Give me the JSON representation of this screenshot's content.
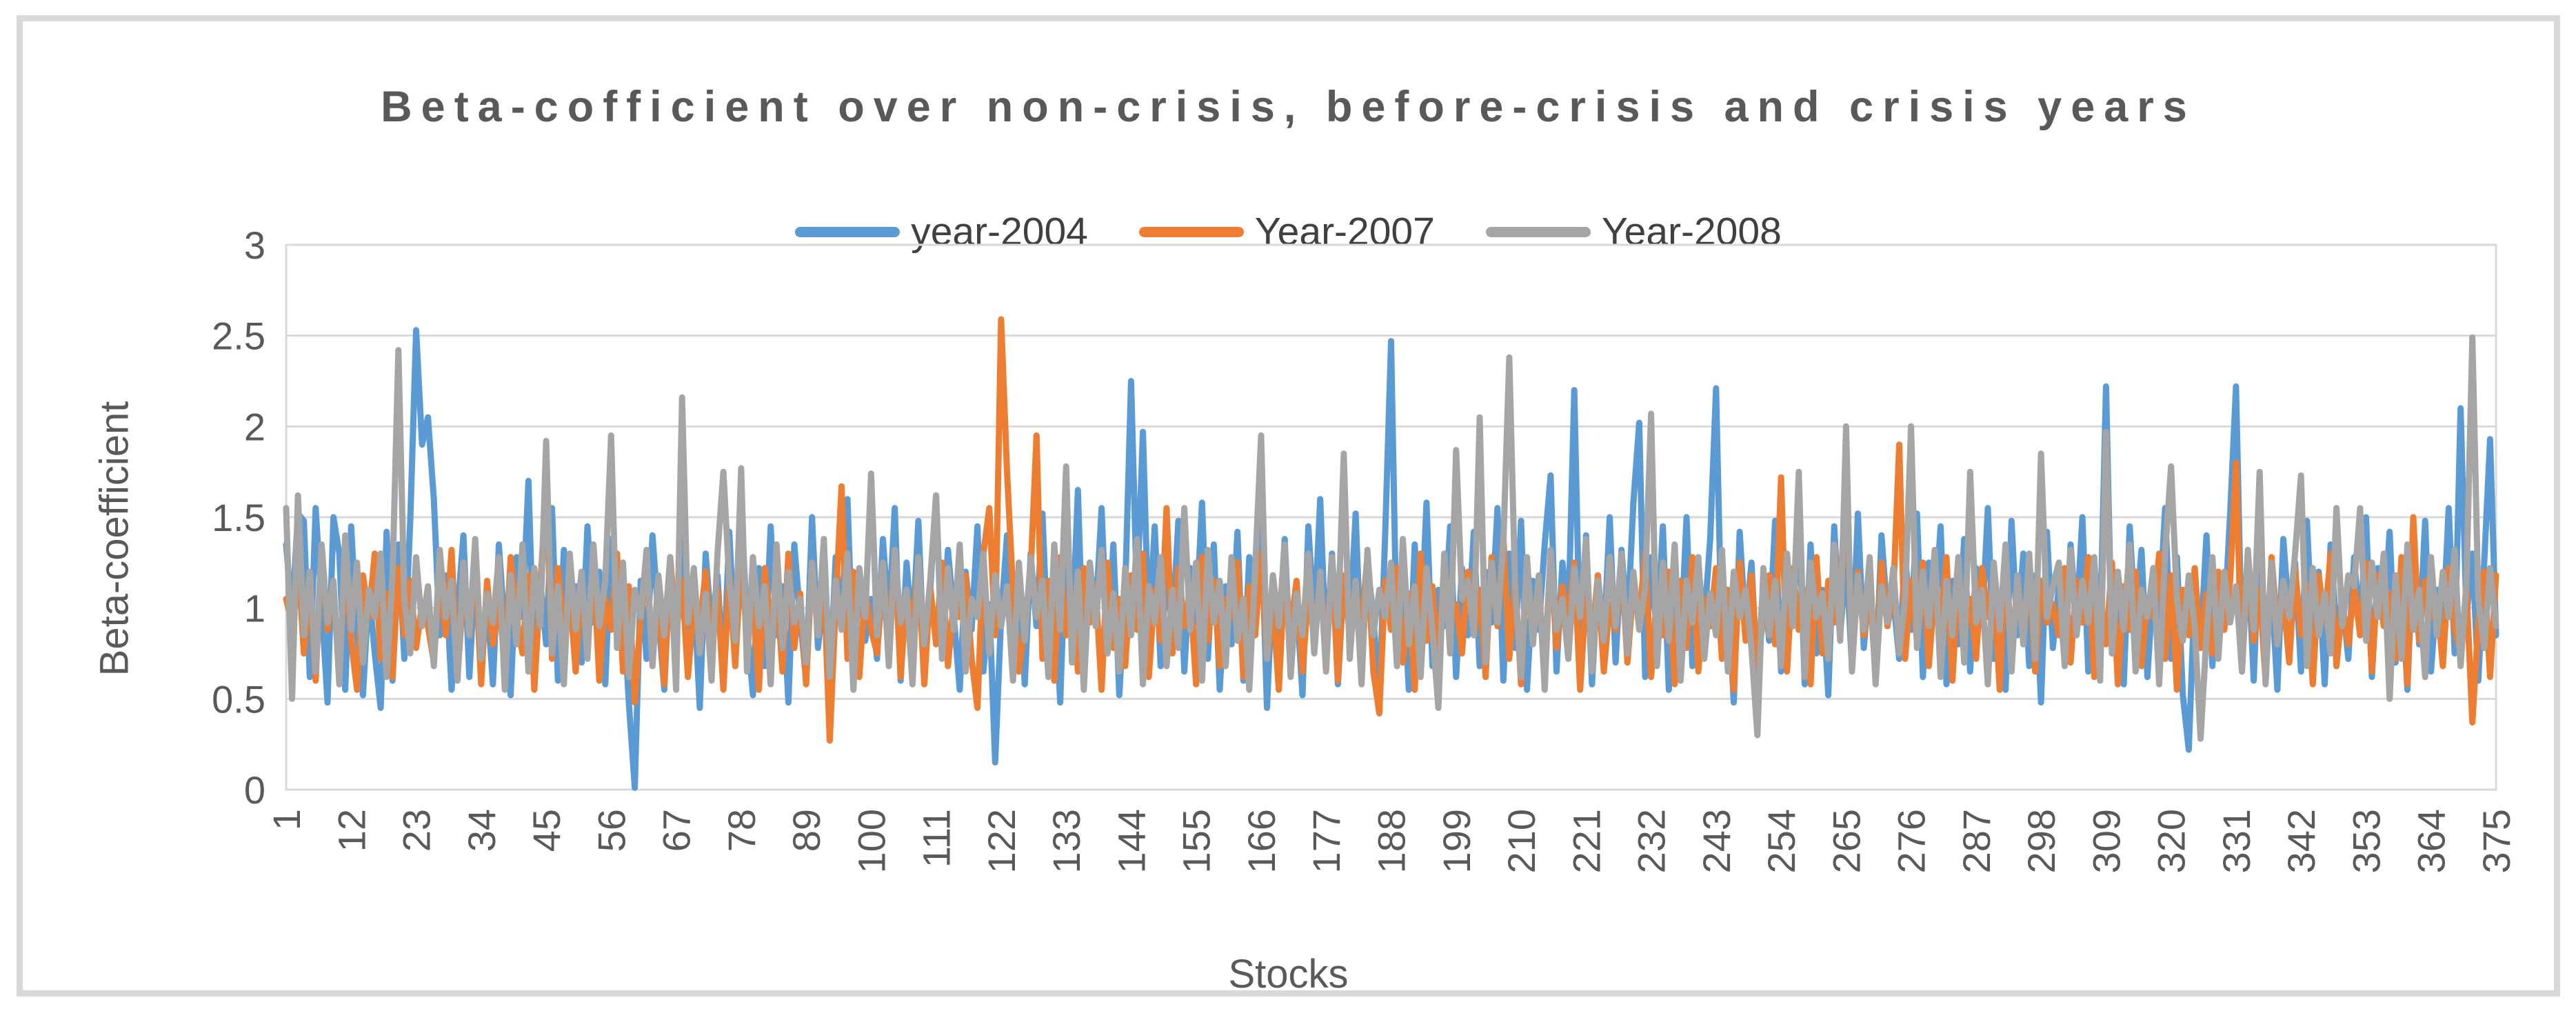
{
  "chart_data": {
    "type": "line",
    "title": "Beta-cofficient over non-crisis, before-crisis and crisis years",
    "xlabel": "Stocks",
    "ylabel": "Beta-coefficient",
    "ylim": [
      0,
      3
    ],
    "x_range": [
      1,
      375
    ],
    "grid": true,
    "legend_position": "top",
    "grid_color": "#d9d9d9",
    "tick_color": "#595959",
    "y_ticks": [
      0,
      0.5,
      1,
      1.5,
      2,
      2.5,
      3
    ],
    "y_tick_labels": [
      "0",
      "0.5",
      "1",
      "1.5",
      "2",
      "2.5",
      "3"
    ],
    "x_tick_labels": [
      "1",
      "12",
      "23",
      "34",
      "45",
      "56",
      "67",
      "78",
      "89",
      "100",
      "111",
      "122",
      "133",
      "144",
      "155",
      "166",
      "177",
      "188",
      "199",
      "210",
      "221",
      "232",
      "243",
      "254",
      "265",
      "276",
      "287",
      "298",
      "309",
      "320",
      "331",
      "342",
      "353",
      "364",
      "375"
    ],
    "series": [
      {
        "name": "year-2004",
        "color": "#5B9BD5",
        "values": [
          1.35,
          0.95,
          1.52,
          1.48,
          0.62,
          1.55,
          1.02,
          0.48,
          1.5,
          1.3,
          0.55,
          1.45,
          0.85,
          0.52,
          1.1,
          0.75,
          0.45,
          1.42,
          0.6,
          1.35,
          0.72,
          1.48,
          2.53,
          1.9,
          2.05,
          1.6,
          0.85,
          1.18,
          0.55,
          0.98,
          1.4,
          0.62,
          1.22,
          0.78,
          1.05,
          0.58,
          1.35,
          0.88,
          0.52,
          1.28,
          0.95,
          1.7,
          0.65,
          1.15,
          0.8,
          1.55,
          0.6,
          1.32,
          0.9,
          1.12,
          0.7,
          1.45,
          0.92,
          1.2,
          0.58,
          1.38,
          0.85,
          1.05,
          0.48,
          0.01,
          1.15,
          0.72,
          1.4,
          0.95,
          0.55,
          1.25,
          0.8,
          1.52,
          0.68,
          1.1,
          0.45,
          1.3,
          0.88,
          1.18,
          0.62,
          1.42,
          0.75,
          1.58,
          0.9,
          0.52,
          1.22,
          0.68,
          1.45,
          0.85,
          1.12,
          0.48,
          1.35,
          0.95,
          0.6,
          1.5,
          0.78,
          1.08,
          0.55,
          1.28,
          0.9,
          1.6,
          0.65,
          1.18,
          0.82,
          1.05,
          0.72,
          1.38,
          0.92,
          1.55,
          0.6,
          1.25,
          0.85,
          1.48,
          0.68,
          1.1,
          1.62,
          0.78,
          1.32,
          0.95,
          0.55,
          1.2,
          0.88,
          1.45,
          0.65,
          1.02,
          0.15,
          0.95,
          1.4,
          0.75,
          1.15,
          0.58,
          1.3,
          0.9,
          1.52,
          0.7,
          1.15,
          0.48,
          1.42,
          0.82,
          1.65,
          0.6,
          1.25,
          0.95,
          1.55,
          0.75,
          1.35,
          0.52,
          1.1,
          2.25,
          1.05,
          1.97,
          0.85,
          1.45,
          0.68,
          1.2,
          0.88,
          1.48,
          0.65,
          1.22,
          0.92,
          1.58,
          0.72,
          1.35,
          0.55,
          1.12,
          0.8,
          1.42,
          0.6,
          1.28,
          0.95,
          1.5,
          0.45,
          1.18,
          0.85,
          1.38,
          0.68,
          1.05,
          0.52,
          1.45,
          0.9,
          1.6,
          0.75,
          1.3,
          0.58,
          1.15,
          0.88,
          1.52,
          0.65,
          1.25,
          0.95,
          0.48,
          1.4,
          2.47,
          0.72,
          1.18,
          0.55,
          1.35,
          0.82,
          1.58,
          0.68,
          1.1,
          0.9,
          1.45,
          0.62,
          1.22,
          0.85,
          1.42,
          0.68,
          1.2,
          0.92,
          1.55,
          0.6,
          1.3,
          0.78,
          1.48,
          0.55,
          1.15,
          0.88,
          1.35,
          1.73,
          0.65,
          1.25,
          0.95,
          2.2,
          0.72,
          1.4,
          0.58,
          1.18,
          0.82,
          1.5,
          0.7,
          1.32,
          0.9,
          1.58,
          2.02,
          0.62,
          1.28,
          0.85,
          1.45,
          0.55,
          1.12,
          0.78,
          1.5,
          0.68,
          1.22,
          0.92,
          1.38,
          2.21,
          0.75,
          1.08,
          0.48,
          1.42,
          0.88,
          1.25,
          0.6,
          1.15,
          0.82,
          1.48,
          0.65,
          1.2,
          0.9,
          1.55,
          0.58,
          1.35,
          0.75,
          1.1,
          0.52,
          1.45,
          0.85,
          1.28,
          0.68,
          1.52,
          0.78,
          1.18,
          0.6,
          1.4,
          0.95,
          1.05,
          0.72,
          1.3,
          0.88,
          1.52,
          0.62,
          1.25,
          0.95,
          1.45,
          0.58,
          1.15,
          0.8,
          1.38,
          0.65,
          1.22,
          0.9,
          1.55,
          0.72,
          1.08,
          0.55,
          1.48,
          0.85,
          1.3,
          0.68,
          1.18,
          0.48,
          1.42,
          0.78,
          1.12,
          0.7,
          1.35,
          0.92,
          1.5,
          0.65,
          1.25,
          0.85,
          2.22,
          0.75,
          1.2,
          0.58,
          1.45,
          0.88,
          1.32,
          0.62,
          1.15,
          0.95,
          1.55,
          0.72,
          1.28,
          0.52,
          0.22,
          1.1,
          0.8,
          1.4,
          0.68,
          1.18,
          0.9,
          1.52,
          2.22,
          0.75,
          1.3,
          0.6,
          1.45,
          0.82,
          1.12,
          0.55,
          1.38,
          0.95,
          1.25,
          0.65,
          1.48,
          0.78,
          1.2,
          0.58,
          1.35,
          0.88,
          1.05,
          0.72,
          1.28,
          0.85,
          1.5,
          0.62,
          1.22,
          0.92,
          1.42,
          0.7,
          1.15,
          0.55,
          1.35,
          0.8,
          1.48,
          0.65,
          1.1,
          0.88,
          1.55,
          0.75,
          2.1,
          0.95,
          1.3,
          0.6,
          1.25,
          1.93,
          0.85
        ]
      },
      {
        "name": "Year-2007",
        "color": "#ED7D31",
        "values": [
          1.05,
          0.92,
          1.28,
          0.75,
          1.15,
          0.6,
          1.35,
          0.88,
          1.1,
          0.68,
          1.25,
          0.82,
          0.55,
          1.18,
          0.95,
          1.3,
          0.72,
          1.08,
          0.62,
          1.22,
          0.85,
          1.15,
          0.78,
          1.02,
          0.9,
          0.7,
          1.2,
          0.85,
          1.32,
          0.62,
          1.1,
          0.92,
          1.25,
          0.58,
          1.15,
          0.8,
          1.05,
          0.68,
          1.28,
          0.95,
          0.75,
          1.18,
          0.55,
          1.12,
          1.65,
          0.72,
          1.22,
          0.88,
          1.08,
          0.65,
          1.15,
          0.78,
          1.25,
          0.6,
          1.05,
          0.88,
          1.3,
          0.65,
          1.12,
          0.48,
          0.95,
          1.22,
          0.72,
          1.08,
          0.58,
          1.28,
          0.85,
          1.15,
          0.62,
          1.02,
          0.9,
          1.2,
          0.75,
          1.1,
          0.55,
          1.18,
          0.68,
          1.28,
          0.82,
          1.05,
          0.55,
          1.22,
          0.9,
          1.12,
          0.65,
          1.3,
          0.78,
          1.08,
          0.58,
          1.25,
          0.85,
          1.15,
          0.27,
          1.02,
          1.67,
          0.72,
          1.2,
          0.62,
          1.1,
          0.88,
          0.75,
          1.15,
          0.88,
          1.28,
          0.62,
          1.08,
          0.92,
          1.22,
          0.58,
          1.12,
          0.8,
          1.25,
          0.68,
          1.05,
          0.95,
          1.18,
          0.72,
          0.45,
          1.3,
          1.55,
          0.85,
          2.59,
          1.75,
          1.1,
          0.65,
          0.9,
          1.2,
          1.95,
          0.72,
          1.15,
          0.6,
          1.28,
          0.85,
          1.08,
          0.65,
          1.22,
          0.92,
          1.12,
          0.55,
          1.25,
          0.78,
          1.05,
          0.68,
          1.18,
          0.88,
          1.3,
          0.62,
          1.1,
          0.82,
          1.55,
          0.75,
          1.22,
          0.9,
          1.08,
          0.58,
          1.28,
          0.82,
          1.15,
          0.68,
          1.05,
          0.95,
          1.25,
          0.62,
          1.12,
          0.85,
          1.3,
          0.72,
          1.02,
          0.55,
          1.2,
          0.88,
          1.15,
          0.65,
          1.08,
          0.92,
          1.1,
          0.78,
          1.25,
          0.6,
          1.18,
          0.85,
          1.05,
          0.92,
          1.28,
          0.65,
          0.42,
          1.15,
          0.88,
          1.22,
          0.7,
          1.08,
          0.55,
          1.3,
          0.82,
          1.12,
          0.68,
          1.25,
          0.95,
          1.02,
          0.75,
          1.2,
          0.85,
          1.1,
          0.62,
          1.28,
          0.9,
          1.4,
          0.72,
          1.15,
          0.58,
          1.22,
          0.88,
          1.05,
          0.68,
          1.3,
          0.78,
          1.12,
          0.92,
          1.25,
          0.55,
          1.08,
          0.82,
          1.18,
          0.65,
          1.02,
          0.88,
          1.25,
          0.7,
          1.12,
          0.95,
          1.3,
          0.62,
          1.08,
          0.85,
          1.2,
          0.58,
          1.15,
          0.78,
          1.28,
          0.65,
          1.05,
          0.9,
          1.22,
          0.72,
          1.1,
          0.55,
          1.25,
          0.82,
          1.18,
          0.68,
          0.95,
          1.18,
          0.8,
          1.72,
          0.65,
          1.22,
          0.88,
          1.1,
          0.58,
          1.28,
          0.75,
          1.15,
          0.92,
          1.05,
          1.74,
          0.68,
          1.2,
          0.85,
          1.12,
          0.62,
          1.25,
          0.9,
          1.08,
          1.9,
          0.72,
          1.15,
          0.82,
          1.25,
          0.68,
          1.1,
          0.9,
          1.28,
          0.6,
          1.18,
          0.85,
          1.05,
          0.72,
          1.22,
          0.95,
          1.12,
          0.55,
          1.3,
          0.78,
          1.08,
          0.88,
          1.2,
          0.65,
          1.15,
          0.92,
          1.02,
          0.85,
          1.22,
          0.7,
          1.15,
          0.92,
          1.28,
          0.62,
          1.08,
          0.8,
          1.25,
          0.58,
          1.12,
          0.88,
          1.2,
          0.68,
          1.05,
          0.95,
          1.3,
          0.72,
          1.18,
          0.55,
          1.1,
          0.85,
          1.22,
          0.78,
          1.08,
          0.75,
          1.2,
          0.88,
          1.15,
          1.8,
          0.65,
          1.25,
          0.82,
          1.1,
          0.6,
          1.28,
          0.9,
          1.05,
          0.7,
          1.22,
          0.85,
          1.12,
          0.58,
          1.18,
          0.92,
          1.3,
          0.68,
          1.02,
          0.8,
          1.12,
          0.85,
          1.25,
          0.65,
          1.18,
          0.9,
          1.08,
          0.72,
          1.28,
          0.58,
          1.5,
          0.82,
          1.15,
          0.95,
          1.05,
          0.68,
          1.22,
          0.88,
          0.75,
          1.1,
          0.37,
          0.92,
          1.2,
          0.62,
          1.18
        ]
      },
      {
        "name": "Year-2008",
        "color": "#A5A5A5",
        "values": [
          1.55,
          0.5,
          1.62,
          0.85,
          1.2,
          0.65,
          1.35,
          0.92,
          1.15,
          0.58,
          1.4,
          0.88,
          1.25,
          0.7,
          1.1,
          0.95,
          1.3,
          0.62,
          1.18,
          2.42,
          1.05,
          0.75,
          1.28,
          0.9,
          1.12,
          0.68,
          1.32,
          0.95,
          1.15,
          0.6,
          1.25,
          0.85,
          1.38,
          0.72,
          1.08,
          0.92,
          1.28,
          0.55,
          1.18,
          0.8,
          1.35,
          0.65,
          1.22,
          0.9,
          1.92,
          0.75,
          1.12,
          0.58,
          1.3,
          0.88,
          1.2,
          0.72,
          1.35,
          0.9,
          1.15,
          1.95,
          0.78,
          1.25,
          0.62,
          1.1,
          0.95,
          1.32,
          0.68,
          1.18,
          0.85,
          1.28,
          0.55,
          2.16,
          0.92,
          1.22,
          0.75,
          1.08,
          0.6,
          1.3,
          1.75,
          1.15,
          0.82,
          1.77,
          0.65,
          1.28,
          0.9,
          1.12,
          0.58,
          1.35,
          0.78,
          1.2,
          0.92,
          1.05,
          0.7,
          1.25,
          0.85,
          1.38,
          0.62,
          1.15,
          0.88,
          1.3,
          0.55,
          1.22,
          0.95,
          1.74,
          0.85,
          1.25,
          0.68,
          1.32,
          0.92,
          1.1,
          0.58,
          1.28,
          0.8,
          1.15,
          1.62,
          0.72,
          1.22,
          0.88,
          1.35,
          0.65,
          1.05,
          0.95,
          1.3,
          0.75,
          1.18,
          0.9,
          1.12,
          0.6,
          1.25,
          0.82,
          1.28,
          0.95,
          1.15,
          0.62,
          1.35,
          0.88,
          1.78,
          0.7,
          1.2,
          0.55,
          1.25,
          0.9,
          1.32,
          0.75,
          1.08,
          0.65,
          1.22,
          0.85,
          1.38,
          0.58,
          1.12,
          0.92,
          1.28,
          0.68,
          1.1,
          0.78,
          1.55,
          0.88,
          1.25,
          0.6,
          1.32,
          0.92,
          1.15,
          0.68,
          1.28,
          0.82,
          1.05,
          0.55,
          1.22,
          1.95,
          0.72,
          1.18,
          0.9,
          1.35,
          0.62,
          1.08,
          0.85,
          1.3,
          0.75,
          1.2,
          0.65,
          1.28,
          0.9,
          1.85,
          0.72,
          1.15,
          0.58,
          1.32,
          0.85,
          1.1,
          0.95,
          1.25,
          0.68,
          1.38,
          0.8,
          1.12,
          0.62,
          1.22,
          0.88,
          0.45,
          1.3,
          0.75,
          1.87,
          1.05,
          1.15,
          0.85,
          2.05,
          0.7,
          1.25,
          0.92,
          1.35,
          2.38,
          1.1,
          0.62,
          1.28,
          0.8,
          1.18,
          0.55,
          1.32,
          0.88,
          1.05,
          0.72,
          1.22,
          0.95,
          1.38,
          0.65,
          1.15,
          0.82,
          1.28,
          0.9,
          1.3,
          0.75,
          1.2,
          0.88,
          1.12,
          2.07,
          0.68,
          1.25,
          0.82,
          1.35,
          0.6,
          1.15,
          0.92,
          1.28,
          0.72,
          1.08,
          0.85,
          1.32,
          0.65,
          1.2,
          0.95,
          1.1,
          0.78,
          0.3,
          1.22,
          0.85,
          1.15,
          0.68,
          1.3,
          0.9,
          1.75,
          0.62,
          1.25,
          0.95,
          1.08,
          0.72,
          1.35,
          0.82,
          2.0,
          0.65,
          1.18,
          0.88,
          1.28,
          0.58,
          1.12,
          0.92,
          1.22,
          0.75,
          1.05,
          2.0,
          0.78,
          1.2,
          0.9,
          1.32,
          0.62,
          1.15,
          0.85,
          1.28,
          0.7,
          1.75,
          0.92,
          1.1,
          0.58,
          1.25,
          0.88,
          1.35,
          0.65,
          1.18,
          0.8,
          1.3,
          0.72,
          1.85,
          0.95,
          1.12,
          1.25,
          0.68,
          1.32,
          0.85,
          1.15,
          0.92,
          1.28,
          0.6,
          1.97,
          0.75,
          1.2,
          0.88,
          1.35,
          0.65,
          1.1,
          0.95,
          1.22,
          0.58,
          1.3,
          1.78,
          1.05,
          0.82,
          1.18,
          0.9,
          0.28,
          0.85,
          1.28,
          0.72,
          1.2,
          0.92,
          1.12,
          0.65,
          1.32,
          0.88,
          1.75,
          0.58,
          1.25,
          0.8,
          1.15,
          0.95,
          1.3,
          1.73,
          0.68,
          1.22,
          0.85,
          1.08,
          0.75,
          1.55,
          0.9,
          1.18,
          1.12,
          1.55,
          0.82,
          1.25,
          0.95,
          1.3,
          0.5,
          1.18,
          0.72,
          1.35,
          0.88,
          1.1,
          0.62,
          1.28,
          0.85,
          1.2,
          0.95,
          1.32,
          0.68,
          1.15,
          2.49,
          1.05,
          0.78,
          1.22,
          0.9
        ]
      }
    ]
  }
}
